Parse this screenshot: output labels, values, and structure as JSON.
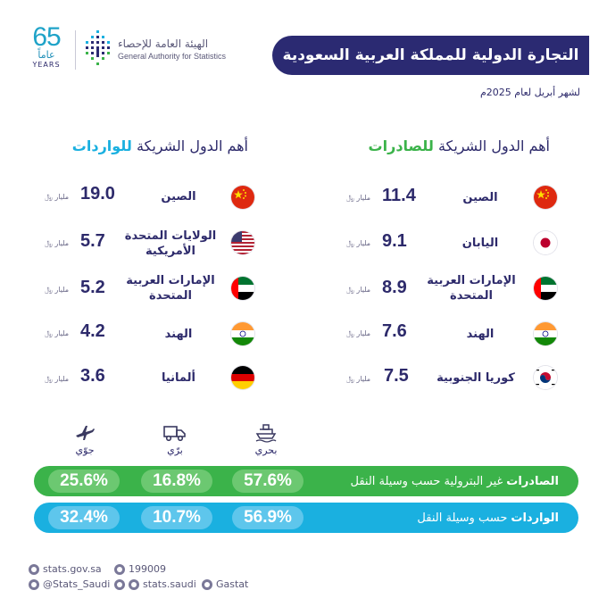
{
  "header": {
    "anniversary_number": "65",
    "anniversary_ar": "عاماً",
    "anniversary_en": "YEARS",
    "authority_ar": "الهيئة العامة للإحصاء",
    "authority_en": "General Authority for Statistics",
    "title": "التجارة الدولية للمملكة العربية السعودية",
    "subtitle": "لشهر أبريل لعام 2025م"
  },
  "exports": {
    "title_prefix": "أهم الدول الشريكة",
    "title_highlight": "للصادرات",
    "countries": [
      {
        "name": "الصين",
        "value": "11.4",
        "unit": "مليار ﷼",
        "flag": "china-flag-icon"
      },
      {
        "name": "اليابان",
        "value": "9.1",
        "unit": "مليار ﷼",
        "flag": "japan-flag-icon"
      },
      {
        "name": "الإمارات العربية المتحدة",
        "value": "8.9",
        "unit": "مليار ﷼",
        "flag": "uae-flag-icon"
      },
      {
        "name": "الهند",
        "value": "7.6",
        "unit": "مليار ﷼",
        "flag": "india-flag-icon"
      },
      {
        "name": "كوريا الجنوبية",
        "value": "7.5",
        "unit": "مليار ﷼",
        "flag": "south-korea-flag-icon"
      }
    ]
  },
  "imports": {
    "title_prefix": "أهم الدول الشريكة",
    "title_highlight": "للواردات",
    "countries": [
      {
        "name": "الصين",
        "value": "19.0",
        "unit": "مليار ﷼",
        "flag": "china-flag-icon"
      },
      {
        "name": "الولايات المتحدة الأمريكية",
        "value": "5.7",
        "unit": "مليار ﷼",
        "flag": "usa-flag-icon"
      },
      {
        "name": "الإمارات العربية المتحدة",
        "value": "5.2",
        "unit": "مليار ﷼",
        "flag": "uae-flag-icon"
      },
      {
        "name": "الهند",
        "value": "4.2",
        "unit": "مليار ﷼",
        "flag": "india-flag-icon"
      },
      {
        "name": "ألمانيا",
        "value": "3.6",
        "unit": "مليار ﷼",
        "flag": "germany-flag-icon"
      }
    ]
  },
  "transport": {
    "modes": [
      {
        "label": "جوّي",
        "icon": "airplane-icon"
      },
      {
        "label": "برّي",
        "icon": "truck-icon"
      },
      {
        "label": "بحري",
        "icon": "ship-icon"
      }
    ],
    "exports_bar": {
      "label_bold": "الصادرات",
      "label_rest": "غير البترولية حسب وسيلة النقل",
      "air": "25.6%",
      "land": "16.8%",
      "sea": "57.6%",
      "color": "#3bb34a"
    },
    "imports_bar": {
      "label_bold": "الواردات",
      "label_rest": "حسب وسيلة النقل",
      "air": "32.4%",
      "land": "10.7%",
      "sea": "56.9%",
      "color": "#1ab0e0"
    }
  },
  "footer": {
    "website": "stats.gov.sa",
    "phone": "199009",
    "twitter": "@Stats_Saudi",
    "social": "stats.saudi",
    "linkedin": "Gastat"
  },
  "colors": {
    "navy": "#2b2a72",
    "green": "#3bb34a",
    "blue": "#1ab0e0"
  }
}
